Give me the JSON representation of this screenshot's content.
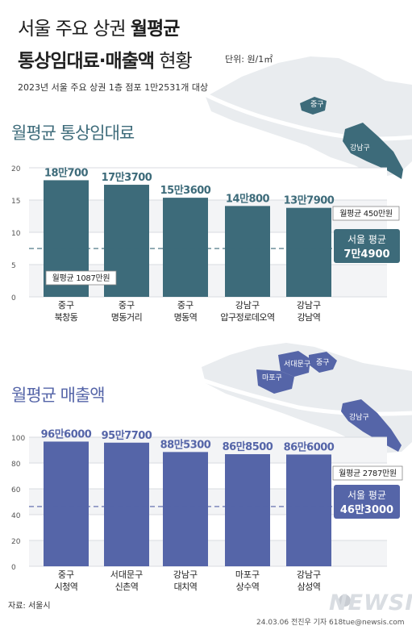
{
  "header": {
    "title_line1_plain": "서울 주요 상권",
    "title_line1_bold": "월평균",
    "title_line2_bold": "통상임대료·매출액",
    "title_line2_plain": "현황",
    "unit": "단위: 원/1㎡",
    "subtitle": "2023년 서울 주요 상권 1층 점포 1만2531개 대상"
  },
  "chart_data": [
    {
      "type": "bar",
      "title": "월평균 통상임대료",
      "categories": [
        [
          "중구",
          "북창동"
        ],
        [
          "중구",
          "명동거리"
        ],
        [
          "중구",
          "명동역"
        ],
        [
          "강남구",
          "압구정로데오역"
        ],
        [
          "강남구",
          "강남역"
        ]
      ],
      "values": [
        18.07,
        17.37,
        15.36,
        14.08,
        13.79
      ],
      "value_labels": [
        "18만700",
        "17만3700",
        "15만3600",
        "14만800",
        "13만7900"
      ],
      "ylim": [
        0,
        20
      ],
      "yticks": [
        0,
        5,
        10,
        15,
        20
      ],
      "ytick_labels": [
        "0",
        "5",
        "10",
        "15",
        "20"
      ],
      "average_value": 7.49,
      "average_label_line1": "서울 평균",
      "average_label_line2": "7만4900",
      "annotation_high": "월평균 450만원",
      "annotation_low": "월평균 1087만원",
      "color": "#3d6b7a",
      "map_labels": [
        "중구",
        "강남구"
      ]
    },
    {
      "type": "bar",
      "title": "월평균 매출액",
      "categories": [
        [
          "중구",
          "시청역"
        ],
        [
          "서대문구",
          "신촌역"
        ],
        [
          "강남구",
          "대치역"
        ],
        [
          "마포구",
          "상수역"
        ],
        [
          "강남구",
          "삼성역"
        ]
      ],
      "values": [
        96.6,
        95.77,
        88.53,
        86.85,
        86.6
      ],
      "value_labels": [
        "96만6000",
        "95만7700",
        "88만5300",
        "86만8500",
        "86만6000"
      ],
      "ylim": [
        0,
        100
      ],
      "yticks": [
        0,
        20,
        40,
        60,
        80,
        100
      ],
      "ytick_labels": [
        "0",
        "20",
        "40",
        "60",
        "80",
        "100"
      ],
      "average_value": 46.3,
      "average_label_line1": "서울 평균",
      "average_label_line2": "46만3000",
      "annotation_high": "월평균 2787만원",
      "color": "#5565a8",
      "map_labels": [
        "서대문구",
        "마포구",
        "중구",
        "강남구"
      ]
    }
  ],
  "footer": {
    "source": "자료: 서울시",
    "credit": "24.03.06 전진우 기자 618tue@newsis.com",
    "logo": "NEWSIS"
  }
}
